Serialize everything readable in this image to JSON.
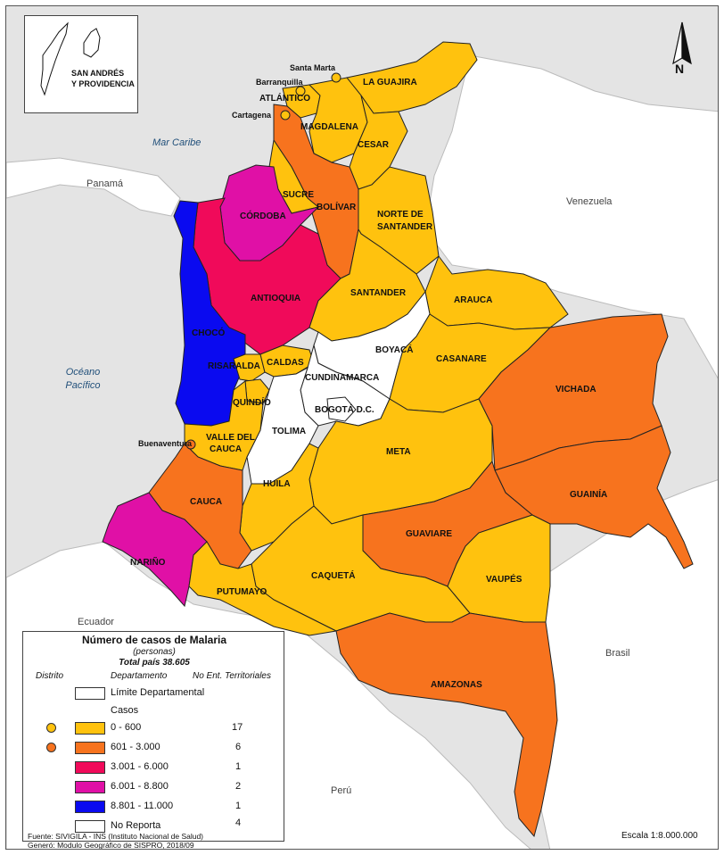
{
  "colors": {
    "range_0_600": "#FFC20E",
    "range_601_3000": "#F7731E",
    "range_3001_6000": "#F00A5A",
    "range_6001_8800": "#E010A6",
    "range_8801_11000": "#0A0AF0",
    "no_reporta": "#FFFFFF",
    "land": "#FFFFFF",
    "sea": "#E4E4E4",
    "border": "#222222"
  },
  "map": {
    "sea_labels": [
      "Mar Caribe",
      "Océano",
      "Pacífico"
    ],
    "countries": [
      "Panamá",
      "Venezuela",
      "Ecuador",
      "Brasil",
      "Perú"
    ],
    "inset_label_line1": "SAN ANDRÉS",
    "inset_label_line2": "Y PROVIDENCIA",
    "north_letter": "N",
    "cities": [
      "Santa Marta",
      "Barranquilla",
      "Cartagena",
      "Buenaventura"
    ],
    "departments": [
      {
        "name": "LA GUAJIRA",
        "range": "0 - 600"
      },
      {
        "name": "ATLÁNTICO",
        "range": "0 - 600"
      },
      {
        "name": "MAGDALENA",
        "range": "0 - 600"
      },
      {
        "name": "CESAR",
        "range": "0 - 600"
      },
      {
        "name": "SUCRE",
        "range": "0 - 600"
      },
      {
        "name": "BOLÍVAR",
        "range": "601 - 3.000"
      },
      {
        "name": "CÓRDOBA",
        "range": "6.001 - 8.800"
      },
      {
        "name": "NORTE DE",
        "range": "0 - 600"
      },
      {
        "name": "SANTANDER",
        "range": "0 - 600"
      },
      {
        "name": "ANTIOQUIA",
        "range": "3.001 - 6.000"
      },
      {
        "name": "SANTANDER",
        "range": "0 - 600"
      },
      {
        "name": "ARAUCA",
        "range": "0 - 600"
      },
      {
        "name": "CHOCÓ",
        "range": "8.801 - 11.000"
      },
      {
        "name": "BOYACÁ",
        "range": "No Reporta"
      },
      {
        "name": "CASANARE",
        "range": "0 - 600"
      },
      {
        "name": "RISARALDA",
        "range": "0 - 600"
      },
      {
        "name": "CALDAS",
        "range": "0 - 600"
      },
      {
        "name": "CUNDINAMARCA",
        "range": "No Reporta"
      },
      {
        "name": "VICHADA",
        "range": "601 - 3.000"
      },
      {
        "name": "QUINDÍO",
        "range": "0 - 600"
      },
      {
        "name": "BOGOTÁ D.C.",
        "range": "No Reporta"
      },
      {
        "name": "TOLIMA",
        "range": "No Reporta"
      },
      {
        "name": "VALLE DEL",
        "range": "0 - 600"
      },
      {
        "name": "CAUCA",
        "range": "0 - 600"
      },
      {
        "name": "META",
        "range": "0 - 600"
      },
      {
        "name": "GUAINÍA",
        "range": "601 - 3.000"
      },
      {
        "name": "HUILA",
        "range": "0 - 600"
      },
      {
        "name": "CAUCA",
        "range": "601 - 3.000"
      },
      {
        "name": "GUAVIARE",
        "range": "601 - 3.000"
      },
      {
        "name": "NARIÑO",
        "range": "6.001 - 8.800"
      },
      {
        "name": "CAQUETÁ",
        "range": "0 - 600"
      },
      {
        "name": "VAUPÉS",
        "range": "0 - 600"
      },
      {
        "name": "PUTUMAYO",
        "range": "0 - 600"
      },
      {
        "name": "AMAZONAS",
        "range": "601 - 3.000"
      }
    ]
  },
  "legend": {
    "title": "Número de casos de Malaria",
    "subtitle": "(personas)",
    "total": "Total país 38.605",
    "col_distrito": "Distrito",
    "col_departamento": "Departamento",
    "col_no_ent": "No Ent. Territoriales",
    "limite_label": "Límite Departamental",
    "casos_label": "Casos",
    "ranges": [
      {
        "label": "0 - 600",
        "count": "17",
        "color": "#FFC20E",
        "distrito": true
      },
      {
        "label": "601 - 3.000",
        "count": "6",
        "color": "#F7731E",
        "distrito": true
      },
      {
        "label": "3.001 - 6.000",
        "count": "1",
        "color": "#F00A5A",
        "distrito": false
      },
      {
        "label": "6.001 - 8.800",
        "count": "2",
        "color": "#E010A6",
        "distrito": false
      },
      {
        "label": "8.801 - 11.000",
        "count": "1",
        "color": "#0A0AF0",
        "distrito": false
      },
      {
        "label": "No Reporta",
        "count": "4",
        "color": "#FFFFFF",
        "distrito": false
      }
    ]
  },
  "footer": {
    "fuente": "Fuente: SIVIGILA - INS (Instituto Nacional de Salud)",
    "genero": "Generó: Modulo Geográfico de SISPRO, 2018/09"
  },
  "scale": "Escala    1:8.000.000"
}
